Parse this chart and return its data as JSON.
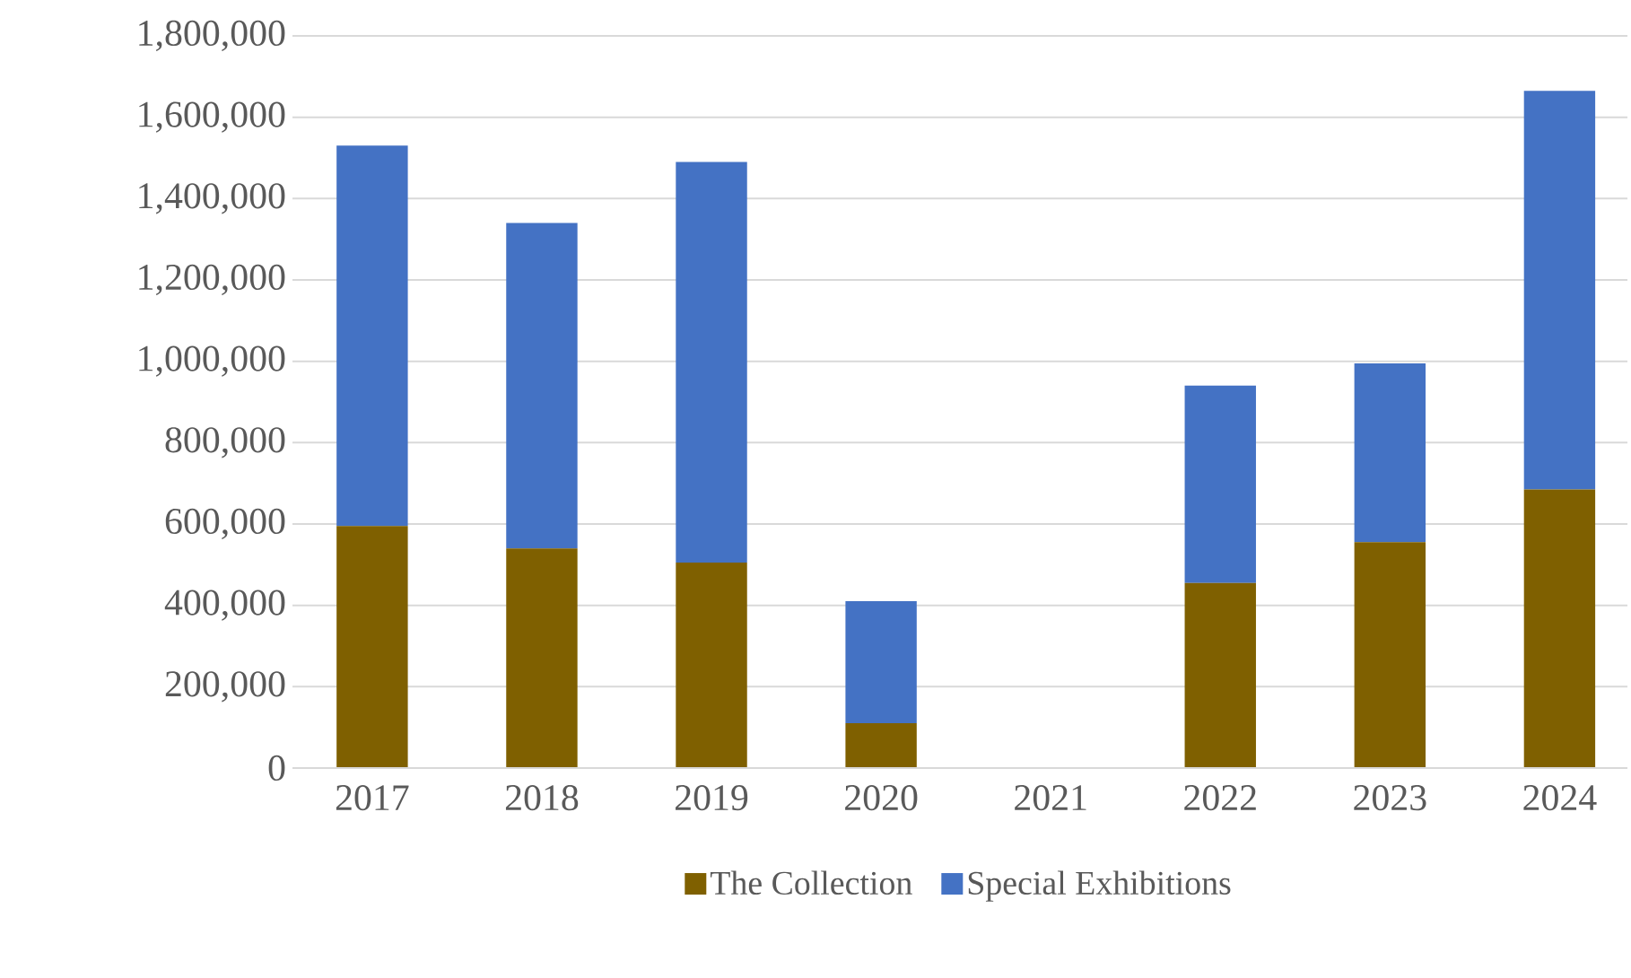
{
  "chart_data": {
    "type": "bar",
    "stacked": true,
    "categories": [
      "2017",
      "2018",
      "2019",
      "2020",
      "2021",
      "2022",
      "2023",
      "2024"
    ],
    "series": [
      {
        "name": "The Collection",
        "color": "#7f6000",
        "values": [
          595000,
          540000,
          505000,
          110000,
          0,
          455000,
          555000,
          685000
        ]
      },
      {
        "name": "Special Exhibitions",
        "color": "#4472c4",
        "values": [
          935000,
          800000,
          985000,
          300000,
          0,
          485000,
          440000,
          980000
        ]
      }
    ],
    "ylim": [
      0,
      1800000
    ],
    "yticks": [
      {
        "value": 0,
        "label": "0"
      },
      {
        "value": 200000,
        "label": "200,000"
      },
      {
        "value": 400000,
        "label": "400,000"
      },
      {
        "value": 600000,
        "label": "600,000"
      },
      {
        "value": 800000,
        "label": "800,000"
      },
      {
        "value": 1000000,
        "label": "1,000,000"
      },
      {
        "value": 1200000,
        "label": "1,200,000"
      },
      {
        "value": 1400000,
        "label": "1,400,000"
      },
      {
        "value": 1600000,
        "label": "1,600,000"
      },
      {
        "value": 1800000,
        "label": "1,800,000"
      }
    ],
    "grid": "y",
    "legend": "bottom"
  }
}
